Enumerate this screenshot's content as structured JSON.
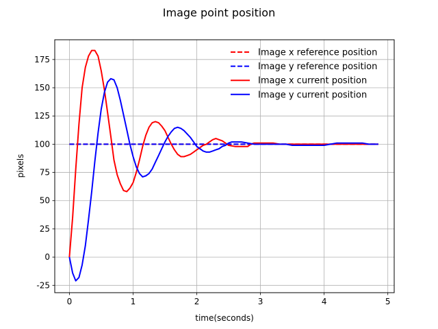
{
  "chart_data": {
    "type": "line",
    "title": "Image point position",
    "xlabel": "time(seconds)",
    "ylabel": "pixels",
    "xlim": [
      -0.23,
      5.1
    ],
    "ylim": [
      -31.5,
      192.5
    ],
    "xticks": [
      0,
      1,
      2,
      3,
      4,
      5
    ],
    "yticks": [
      -25,
      0,
      25,
      50,
      75,
      100,
      125,
      150,
      175
    ],
    "grid": true,
    "legend_position": "top-right",
    "series": [
      {
        "name": "Image x reference position",
        "color": "#ff0000",
        "dash": true,
        "x": [
          0,
          4.85
        ],
        "y": [
          100,
          100
        ]
      },
      {
        "name": "Image y reference position",
        "color": "#0000ff",
        "dash": true,
        "x": [
          0,
          4.85
        ],
        "y": [
          100,
          100
        ]
      },
      {
        "name": "Image x current position",
        "color": "#ff0000",
        "dash": false,
        "x": [
          0,
          0.05,
          0.1,
          0.15,
          0.2,
          0.25,
          0.3,
          0.35,
          0.4,
          0.45,
          0.5,
          0.55,
          0.6,
          0.65,
          0.7,
          0.75,
          0.8,
          0.85,
          0.9,
          0.95,
          1.0,
          1.05,
          1.1,
          1.15,
          1.2,
          1.25,
          1.3,
          1.35,
          1.4,
          1.45,
          1.5,
          1.55,
          1.6,
          1.65,
          1.7,
          1.75,
          1.8,
          1.85,
          1.9,
          1.95,
          2.0,
          2.05,
          2.1,
          2.15,
          2.2,
          2.25,
          2.3,
          2.35,
          2.4,
          2.45,
          2.5,
          2.6,
          2.7,
          2.8,
          2.85,
          2.9,
          3.0,
          3.1,
          3.2,
          3.3,
          3.4,
          3.5,
          3.6,
          3.7,
          3.8,
          3.9,
          4.0,
          4.1,
          4.2,
          4.3,
          4.4,
          4.5,
          4.6,
          4.7,
          4.8,
          4.85
        ],
        "y": [
          0,
          35,
          78,
          118,
          150,
          168,
          178,
          183,
          183,
          178,
          165,
          148,
          128,
          107,
          86,
          73,
          65,
          59,
          58,
          61,
          66,
          75,
          86,
          98,
          108,
          115,
          119,
          120,
          119,
          116,
          112,
          106,
          100,
          95,
          91,
          89,
          89,
          90,
          91,
          93,
          95,
          97,
          99,
          100,
          102,
          104,
          105,
          104,
          103,
          101,
          99,
          98,
          98,
          98,
          100,
          101,
          101,
          101,
          101,
          100,
          100,
          100,
          100,
          100,
          100,
          100,
          100,
          100,
          100,
          100,
          100,
          100,
          100,
          100,
          100,
          100
        ]
      },
      {
        "name": "Image y current position",
        "color": "#0000ff",
        "dash": false,
        "x": [
          0,
          0.05,
          0.1,
          0.15,
          0.2,
          0.25,
          0.3,
          0.35,
          0.4,
          0.45,
          0.5,
          0.55,
          0.6,
          0.65,
          0.7,
          0.75,
          0.8,
          0.85,
          0.9,
          0.95,
          1.0,
          1.05,
          1.1,
          1.15,
          1.2,
          1.25,
          1.3,
          1.35,
          1.4,
          1.45,
          1.5,
          1.55,
          1.6,
          1.65,
          1.7,
          1.75,
          1.8,
          1.85,
          1.9,
          1.95,
          2.0,
          2.05,
          2.1,
          2.15,
          2.2,
          2.25,
          2.3,
          2.35,
          2.4,
          2.45,
          2.5,
          2.55,
          2.6,
          2.7,
          2.8,
          2.9,
          3.0,
          3.1,
          3.2,
          3.3,
          3.4,
          3.5,
          3.6,
          3.7,
          3.8,
          3.9,
          4.0,
          4.1,
          4.2,
          4.3,
          4.4,
          4.5,
          4.6,
          4.7,
          4.8,
          4.85
        ],
        "y": [
          0,
          -14,
          -21,
          -18,
          -7,
          10,
          33,
          58,
          85,
          110,
          131,
          146,
          155,
          158,
          157,
          150,
          139,
          126,
          113,
          100,
          89,
          80,
          74,
          71,
          72,
          74,
          78,
          84,
          90,
          96,
          102,
          107,
          111,
          114,
          115,
          114,
          112,
          109,
          106,
          102,
          98,
          96,
          94,
          93,
          93,
          94,
          95,
          96,
          98,
          99,
          101,
          102,
          102,
          102,
          101,
          100,
          100,
          100,
          100,
          100,
          100,
          99,
          99,
          99,
          99,
          99,
          99,
          100,
          101,
          101,
          101,
          101,
          101,
          100,
          100,
          100
        ]
      }
    ]
  }
}
